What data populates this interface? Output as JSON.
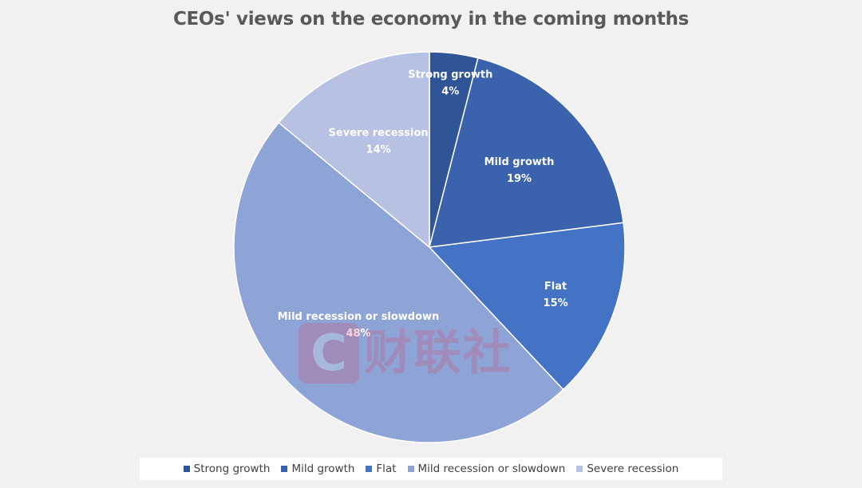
{
  "chart_data": {
    "type": "pie",
    "title": "CEOs' views on the economy in the coming months",
    "categories": [
      "Strong growth",
      "Mild growth",
      "Flat",
      "Mild recession or slowdown",
      "Severe recession"
    ],
    "values": [
      4,
      19,
      15,
      48,
      14
    ],
    "value_labels": [
      "4%",
      "19%",
      "15%",
      "48%",
      "14%"
    ],
    "unit": "%",
    "colors": [
      "#2f5597",
      "#3a62ad",
      "#4472c4",
      "#8ea4d6",
      "#b6c1e3"
    ],
    "start_angle": "12 o'clock",
    "direction": "clockwise",
    "legend_position": "bottom"
  },
  "watermark": {
    "logo_letter": "C",
    "text": "财联社"
  }
}
